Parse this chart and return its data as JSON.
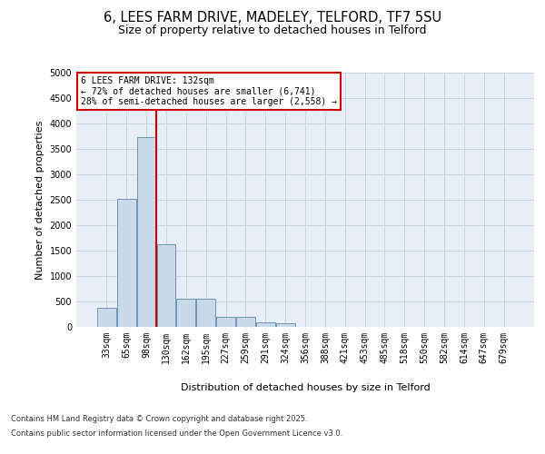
{
  "title_line1": "6, LEES FARM DRIVE, MADELEY, TELFORD, TF7 5SU",
  "title_line2": "Size of property relative to detached houses in Telford",
  "xlabel": "Distribution of detached houses by size in Telford",
  "ylabel": "Number of detached properties",
  "categories": [
    "33sqm",
    "65sqm",
    "98sqm",
    "130sqm",
    "162sqm",
    "195sqm",
    "227sqm",
    "259sqm",
    "291sqm",
    "324sqm",
    "356sqm",
    "388sqm",
    "421sqm",
    "453sqm",
    "485sqm",
    "518sqm",
    "550sqm",
    "582sqm",
    "614sqm",
    "647sqm",
    "679sqm"
  ],
  "values": [
    380,
    2520,
    3730,
    1630,
    550,
    545,
    205,
    200,
    95,
    70,
    0,
    0,
    0,
    0,
    0,
    0,
    0,
    0,
    0,
    0,
    0
  ],
  "bar_color": "#c9d9e8",
  "bar_edge_color": "#5a8ab0",
  "vline_color": "#cc0000",
  "annotation_text": "6 LEES FARM DRIVE: 132sqm\n← 72% of detached houses are smaller (6,741)\n28% of semi-detached houses are larger (2,558) →",
  "annotation_box_color": "#cc0000",
  "ylim": [
    0,
    5000
  ],
  "yticks": [
    0,
    500,
    1000,
    1500,
    2000,
    2500,
    3000,
    3500,
    4000,
    4500,
    5000
  ],
  "grid_color": "#c8d4e0",
  "bg_color": "#e8eef5",
  "footer_line1": "Contains HM Land Registry data © Crown copyright and database right 2025.",
  "footer_line2": "Contains public sector information licensed under the Open Government Licence v3.0.",
  "title_fontsize": 10.5,
  "subtitle_fontsize": 9,
  "annotation_fontsize": 7,
  "footer_fontsize": 6,
  "axis_label_fontsize": 7.5,
  "ylabel_fontsize": 8,
  "xlabel_fontsize": 8,
  "tick_fontsize": 7
}
